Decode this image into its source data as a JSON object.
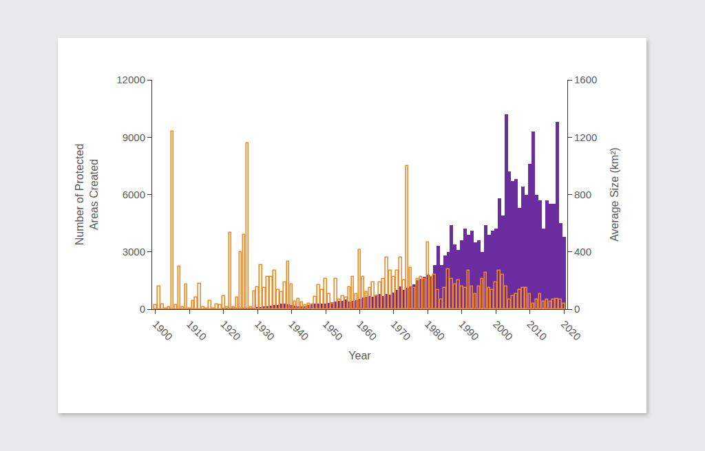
{
  "chart_data": {
    "type": "bar",
    "xlabel": "Year",
    "ylabel": "Number of Protected\nAreas Created",
    "y2label": "Average Size (km²)",
    "x": [
      1900,
      1901,
      1902,
      1903,
      1904,
      1905,
      1906,
      1907,
      1908,
      1909,
      1910,
      1911,
      1912,
      1913,
      1914,
      1915,
      1916,
      1917,
      1918,
      1919,
      1920,
      1921,
      1922,
      1923,
      1924,
      1925,
      1926,
      1927,
      1928,
      1929,
      1930,
      1931,
      1932,
      1933,
      1934,
      1935,
      1936,
      1937,
      1938,
      1939,
      1940,
      1941,
      1942,
      1943,
      1944,
      1945,
      1946,
      1947,
      1948,
      1949,
      1950,
      1951,
      1952,
      1953,
      1954,
      1955,
      1956,
      1957,
      1958,
      1959,
      1960,
      1961,
      1962,
      1963,
      1964,
      1965,
      1966,
      1967,
      1968,
      1969,
      1970,
      1971,
      1972,
      1973,
      1974,
      1975,
      1976,
      1977,
      1978,
      1979,
      1980,
      1981,
      1982,
      1983,
      1984,
      1985,
      1986,
      1987,
      1988,
      1989,
      1990,
      1991,
      1992,
      1993,
      1994,
      1995,
      1996,
      1997,
      1998,
      1999,
      2000,
      2001,
      2002,
      2003,
      2004,
      2005,
      2006,
      2007,
      2008,
      2009,
      2010,
      2011,
      2012,
      2013,
      2014,
      2015,
      2016,
      2017,
      2018,
      2019,
      2020
    ],
    "xlim": [
      1899,
      2021
    ],
    "xticks": [
      1900,
      1910,
      1920,
      1930,
      1940,
      1950,
      1960,
      1970,
      1980,
      1990,
      2000,
      2010,
      2020
    ],
    "ylim": [
      0,
      12000
    ],
    "yticks": [
      0,
      3000,
      6000,
      9000,
      12000
    ],
    "y2lim": [
      0,
      1600
    ],
    "y2ticks": [
      0,
      400,
      800,
      1200,
      1600
    ],
    "grid": false,
    "series": [
      {
        "color": "#6a2c9e",
        "marker": "filled",
        "values": [
          10,
          10,
          10,
          10,
          10,
          20,
          20,
          10,
          20,
          20,
          20,
          20,
          30,
          20,
          20,
          30,
          30,
          20,
          30,
          30,
          40,
          40,
          50,
          50,
          50,
          60,
          60,
          70,
          80,
          90,
          100,
          120,
          150,
          150,
          180,
          200,
          220,
          280,
          300,
          250,
          220,
          180,
          150,
          150,
          160,
          200,
          250,
          280,
          300,
          280,
          300,
          320,
          350,
          400,
          420,
          450,
          500,
          400,
          450,
          480,
          550,
          600,
          650,
          700,
          650,
          750,
          800,
          700,
          800,
          750,
          850,
          1000,
          1200,
          1000,
          1100,
          1200,
          1300,
          1500,
          1600,
          1700,
          1800,
          1700,
          2300,
          3300,
          2300,
          2800,
          3000,
          4400,
          3400,
          3100,
          3600,
          4200,
          3900,
          4100,
          3500,
          3600,
          3000,
          4400,
          3900,
          4100,
          4200,
          5800,
          4900,
          10200,
          7200,
          6700,
          6800,
          5300,
          6400,
          6000,
          7600,
          9300,
          6000,
          5700,
          4200,
          5700,
          5500,
          5500,
          9800,
          4500,
          3800
        ]
      },
      {
        "color": "#f08a24",
        "marker": "hollow",
        "axis": "y2",
        "values": [
          27,
          160,
          33,
          7,
          13,
          1240,
          27,
          300,
          13,
          173,
          7,
          60,
          80,
          180,
          13,
          7,
          60,
          7,
          33,
          27,
          93,
          13,
          533,
          13,
          80,
          400,
          520,
          1160,
          13,
          127,
          153,
          307,
          147,
          227,
          227,
          267,
          133,
          120,
          187,
          333,
          173,
          53,
          73,
          47,
          27,
          40,
          33,
          87,
          167,
          133,
          213,
          107,
          40,
          213,
          67,
          93,
          80,
          153,
          227,
          107,
          413,
          227,
          120,
          147,
          187,
          93,
          187,
          213,
          360,
          267,
          227,
          267,
          360,
          200,
          1000,
          287,
          147,
          213,
          227,
          213,
          467,
          227,
          240,
          133,
          67,
          147,
          280,
          213,
          173,
          200,
          160,
          147,
          267,
          160,
          107,
          160,
          213,
          253,
          147,
          133,
          187,
          267,
          240,
          160,
          67,
          93,
          107,
          133,
          147,
          147,
          107,
          40,
          67,
          107,
          53,
          67,
          53,
          67,
          73,
          67,
          40
        ]
      }
    ]
  }
}
